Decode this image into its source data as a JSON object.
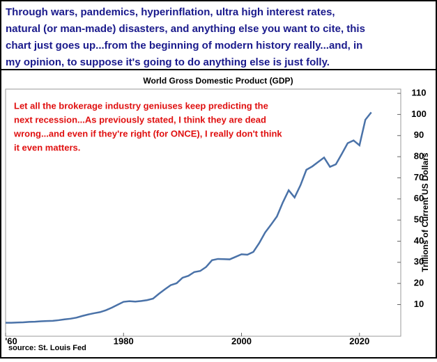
{
  "header": {
    "lines": [
      "Through wars, pandemics, hyperinflation, ultra high interest rates,",
      "natural (or man-made) disasters, and anything else you want to cite, this",
      "chart just goes up...from the beginning of modern history really...and, in",
      "my opinion, to suppose it's going to do anything else is just folly."
    ]
  },
  "chart_data": {
    "type": "line",
    "title": "World Gross Domestic Product (GDP)",
    "annotation": [
      "Let all the brokerage industry geniuses keep predicting the",
      "next recession...As previously stated, I think they are dead",
      "wrong...and even if they're right (for ONCE), I really don't think",
      "it even matters."
    ],
    "y_label": "Trillions of Current US Dollars",
    "source": "source: St. Louis Fed",
    "x": [
      1960,
      1961,
      1962,
      1963,
      1964,
      1965,
      1966,
      1967,
      1968,
      1969,
      1970,
      1971,
      1972,
      1973,
      1974,
      1975,
      1976,
      1977,
      1978,
      1979,
      1980,
      1981,
      1982,
      1983,
      1984,
      1985,
      1986,
      1987,
      1988,
      1989,
      1990,
      1991,
      1992,
      1993,
      1994,
      1995,
      1996,
      1997,
      1998,
      1999,
      2000,
      2001,
      2002,
      2003,
      2004,
      2005,
      2006,
      2007,
      2008,
      2009,
      2010,
      2011,
      2012,
      2013,
      2014,
      2015,
      2016,
      2017,
      2018,
      2019,
      2020,
      2021,
      2022
    ],
    "series": [
      {
        "name": "World GDP",
        "color": "#4a72a8",
        "values": [
          1.4,
          1.4,
          1.5,
          1.6,
          1.8,
          1.9,
          2.1,
          2.2,
          2.3,
          2.6,
          3.0,
          3.3,
          3.8,
          4.6,
          5.3,
          5.9,
          6.4,
          7.3,
          8.5,
          9.9,
          11.3,
          11.6,
          11.4,
          11.7,
          12.1,
          12.8,
          15.1,
          17.2,
          19.2,
          20.1,
          22.7,
          23.6,
          25.4,
          25.9,
          27.8,
          31.0,
          31.6,
          31.5,
          31.4,
          32.6,
          33.8,
          33.6,
          34.9,
          39.1,
          44.1,
          47.8,
          51.7,
          58.3,
          64.1,
          60.7,
          66.5,
          73.8,
          75.4,
          77.5,
          79.6,
          75.2,
          76.4,
          81.3,
          86.4,
          87.7,
          85.4,
          97.5,
          101.0
        ]
      }
    ],
    "xlim": [
      1960,
      2027
    ],
    "xticks": [
      {
        "value": 1960,
        "label": "'60"
      },
      1980,
      2000,
      2020
    ],
    "ylim": [
      -5,
      112
    ],
    "yticks": [
      10,
      20,
      30,
      40,
      50,
      60,
      70,
      80,
      90,
      100,
      110
    ],
    "grid": false
  }
}
